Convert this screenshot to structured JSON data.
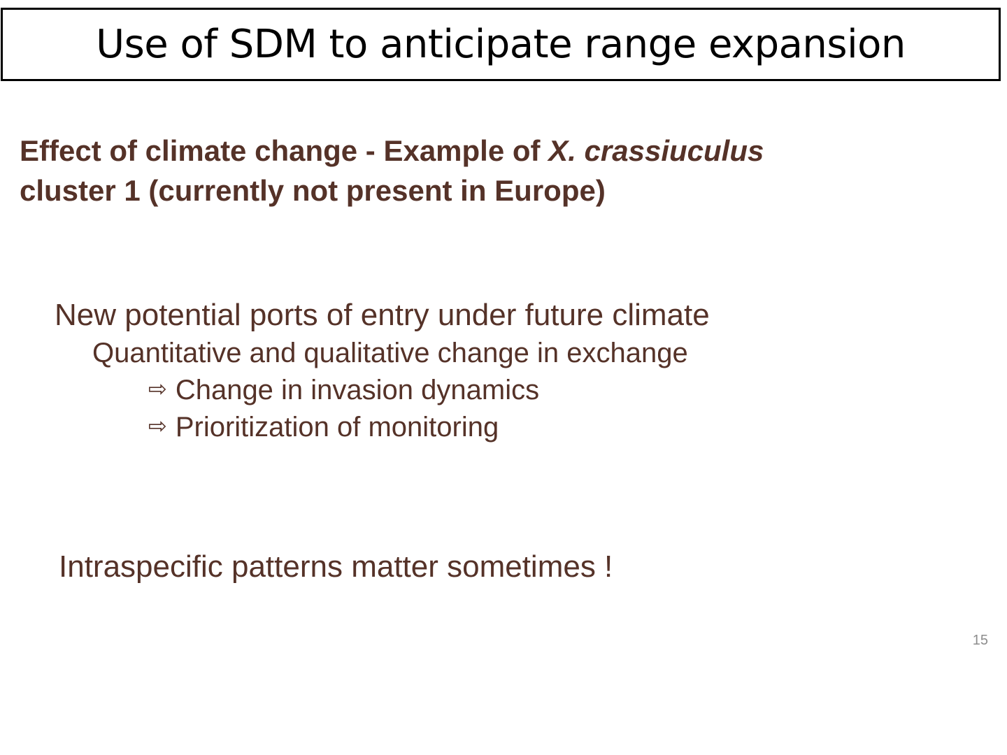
{
  "slide": {
    "title": "Use of SDM to anticipate range expansion",
    "subtitle": {
      "part1": "Effect of climate change - Example of ",
      "species": "X. crassiuculus",
      "part2": "cluster 1 (currently not present in Europe)"
    },
    "points": {
      "main": "New potential ports of entry under future climate",
      "sub": "Quantitative and qualitative change in exchange",
      "consequences": [
        "Change in invasion dynamics",
        "Prioritization of monitoring"
      ]
    },
    "arrow_symbol": "⇨",
    "closing": "Intraspecific patterns matter sometimes !",
    "page_number": "15"
  },
  "colors": {
    "text_brown": "#553228",
    "title_black": "#000000",
    "page_number_gray": "#8c8c8c"
  }
}
